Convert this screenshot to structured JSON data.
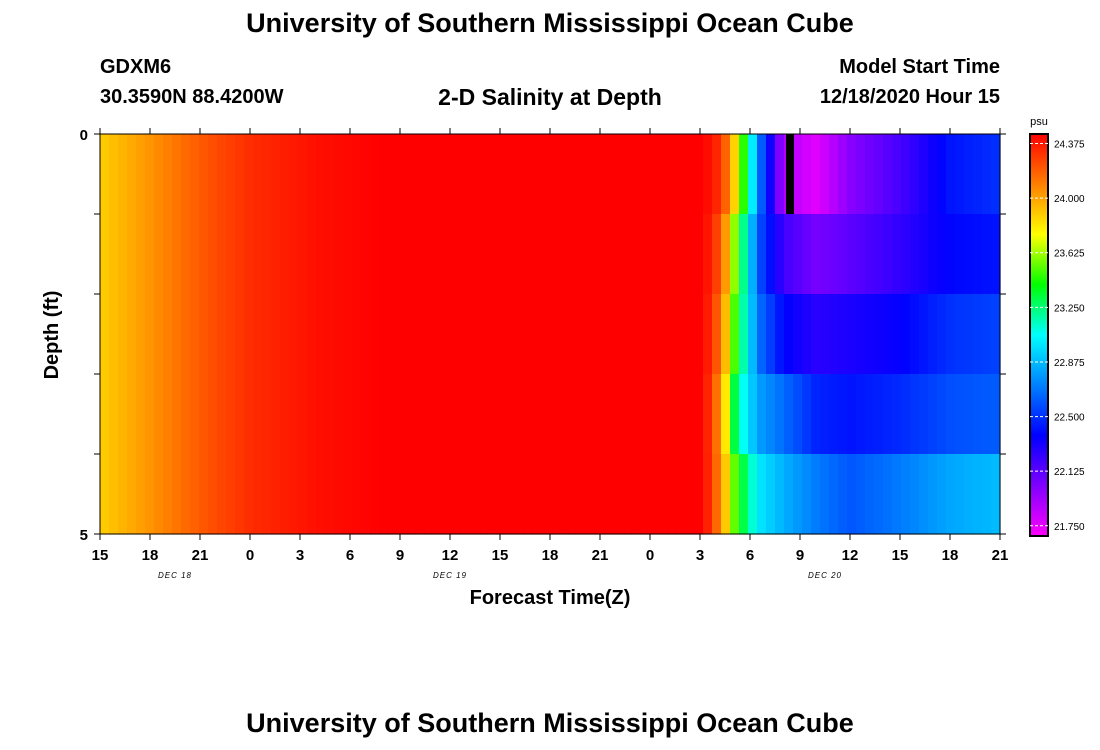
{
  "header": {
    "title": "University of Southern Mississippi Ocean Cube",
    "station": "GDXM6",
    "coords": "30.3590N 88.4200W",
    "plot_title": "2-D Salinity at Depth",
    "model_start_label": "Model Start Time",
    "model_start_value": "12/18/2020 Hour 15"
  },
  "footer": {
    "title": "University of Southern Mississippi Ocean Cube"
  },
  "chart_data": {
    "type": "heatmap",
    "title": "2-D Salinity at Depth",
    "xlabel": "Forecast Time(Z)",
    "ylabel": "Depth (ft)",
    "x_ticks": [
      "15",
      "18",
      "21",
      "0",
      "3",
      "6",
      "9",
      "12",
      "15",
      "18",
      "21",
      "0",
      "3",
      "6",
      "9",
      "12",
      "15",
      "18",
      "21"
    ],
    "date_labels": [
      {
        "label": "DEC 18",
        "tick_index": 1.5
      },
      {
        "label": "DEC 19",
        "tick_index": 7
      },
      {
        "label": "DEC 20",
        "tick_index": 14.5
      }
    ],
    "x_range_hours": [
      0,
      54
    ],
    "y_ticks": [
      "0",
      "5"
    ],
    "y_range": [
      0,
      5
    ],
    "depth_bands": 5,
    "colorbar": {
      "unit": "psu",
      "range": [
        21.68,
        24.44
      ],
      "ticks": [
        "24.375",
        "24.000",
        "23.625",
        "23.250",
        "22.875",
        "22.500",
        "22.125",
        "21.750"
      ],
      "colors": [
        "#ff00ff",
        "#8000ff",
        "#0000ff",
        "#0080ff",
        "#00ffff",
        "#00ff00",
        "#ffff00",
        "#ff8000",
        "#ff0000"
      ]
    },
    "profile_hours": [
      0,
      3,
      6,
      9,
      13,
      17,
      20,
      24,
      30,
      33,
      35,
      36.5,
      37.5,
      38,
      38.5,
      39,
      40,
      42,
      45,
      48,
      51,
      54
    ],
    "band_hours": [
      0,
      36.2,
      37.3,
      38.2,
      39.5,
      41,
      43,
      45,
      48,
      51,
      54
    ],
    "bands": [
      [
        23.88,
        24.44,
        24.3,
        23.8,
        22.72,
        21.9,
        21.76,
        22.0,
        22.18,
        22.42,
        22.5
      ],
      [
        23.88,
        24.44,
        24.2,
        23.5,
        22.6,
        22.2,
        22.05,
        22.12,
        22.24,
        22.38,
        22.42
      ],
      [
        23.88,
        24.44,
        24.12,
        23.4,
        22.68,
        22.38,
        22.26,
        22.3,
        22.36,
        22.5,
        22.55
      ],
      [
        23.88,
        24.44,
        24.02,
        23.2,
        22.8,
        22.66,
        22.46,
        22.42,
        22.48,
        22.58,
        22.62
      ],
      [
        23.88,
        24.44,
        24.05,
        23.45,
        23.0,
        22.85,
        22.7,
        22.6,
        22.7,
        22.82,
        22.88
      ]
    ],
    "annotation": {
      "type": "missing-data-marker",
      "hour": 41.4,
      "depth_band": 0
    }
  }
}
